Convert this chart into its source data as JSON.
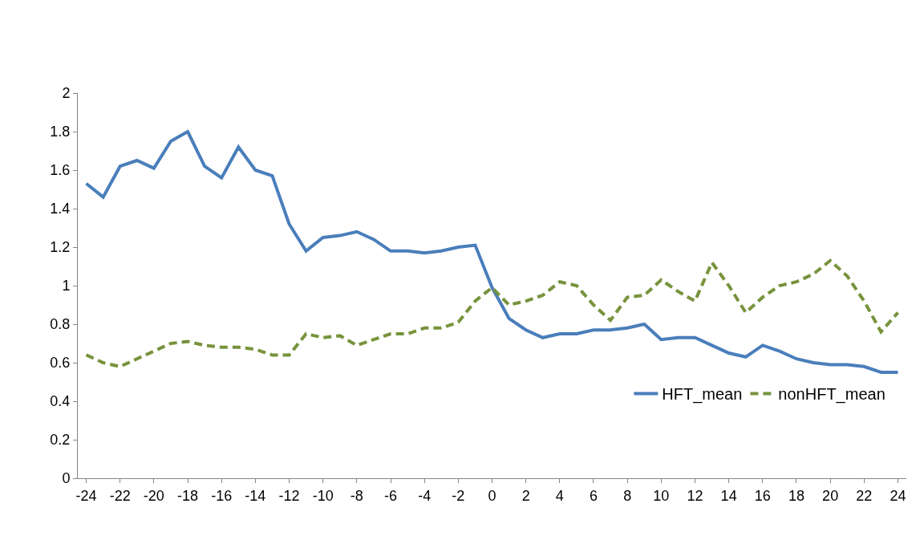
{
  "chart_data": {
    "type": "line",
    "x": [
      -24,
      -23,
      -22,
      -21,
      -20,
      -19,
      -18,
      -17,
      -16,
      -15,
      -14,
      -13,
      -12,
      -11,
      -10,
      -9,
      -8,
      -7,
      -6,
      -5,
      -4,
      -3,
      -2,
      -1,
      0,
      1,
      2,
      3,
      4,
      5,
      6,
      7,
      8,
      9,
      10,
      11,
      12,
      13,
      14,
      15,
      16,
      17,
      18,
      19,
      20,
      21,
      22,
      23,
      24
    ],
    "series": [
      {
        "name": "HFT_mean",
        "color": "#4a7ebb",
        "line_style": "solid",
        "values": [
          1.53,
          1.46,
          1.62,
          1.65,
          1.61,
          1.75,
          1.8,
          1.62,
          1.56,
          1.72,
          1.6,
          1.57,
          1.32,
          1.18,
          1.25,
          1.26,
          1.28,
          1.24,
          1.18,
          1.18,
          1.17,
          1.18,
          1.2,
          1.21,
          0.99,
          0.83,
          0.77,
          0.73,
          0.75,
          0.75,
          0.77,
          0.77,
          0.78,
          0.8,
          0.72,
          0.73,
          0.73,
          0.69,
          0.65,
          0.63,
          0.69,
          0.66,
          0.62,
          0.6,
          0.59,
          0.59,
          0.58,
          0.55,
          0.55
        ]
      },
      {
        "name": "nonHFT_mean",
        "color": "#77933c",
        "line_style": "dashed",
        "values": [
          0.64,
          0.6,
          0.58,
          0.62,
          0.66,
          0.7,
          0.71,
          0.69,
          0.68,
          0.68,
          0.67,
          0.64,
          0.64,
          0.75,
          0.73,
          0.74,
          0.69,
          0.72,
          0.75,
          0.75,
          0.78,
          0.78,
          0.81,
          0.92,
          0.99,
          0.9,
          0.92,
          0.95,
          1.02,
          1.0,
          0.9,
          0.82,
          0.94,
          0.95,
          1.03,
          0.97,
          0.92,
          1.12,
          1.0,
          0.86,
          0.94,
          1.0,
          1.02,
          1.06,
          1.13,
          1.05,
          0.92,
          0.76,
          0.86
        ]
      }
    ],
    "xlim": [
      -24.5,
      24.5
    ],
    "xticks": [
      -24,
      -22,
      -20,
      -18,
      -16,
      -14,
      -12,
      -10,
      -8,
      -6,
      -4,
      -2,
      0,
      2,
      4,
      6,
      8,
      10,
      12,
      14,
      16,
      18,
      20,
      22,
      24
    ],
    "ylim": [
      0,
      2
    ],
    "yticks": [
      0,
      0.2,
      0.4,
      0.6,
      0.8,
      1,
      1.2,
      1.4,
      1.6,
      1.8,
      2
    ],
    "legend": "bottom right",
    "marker": "none"
  }
}
